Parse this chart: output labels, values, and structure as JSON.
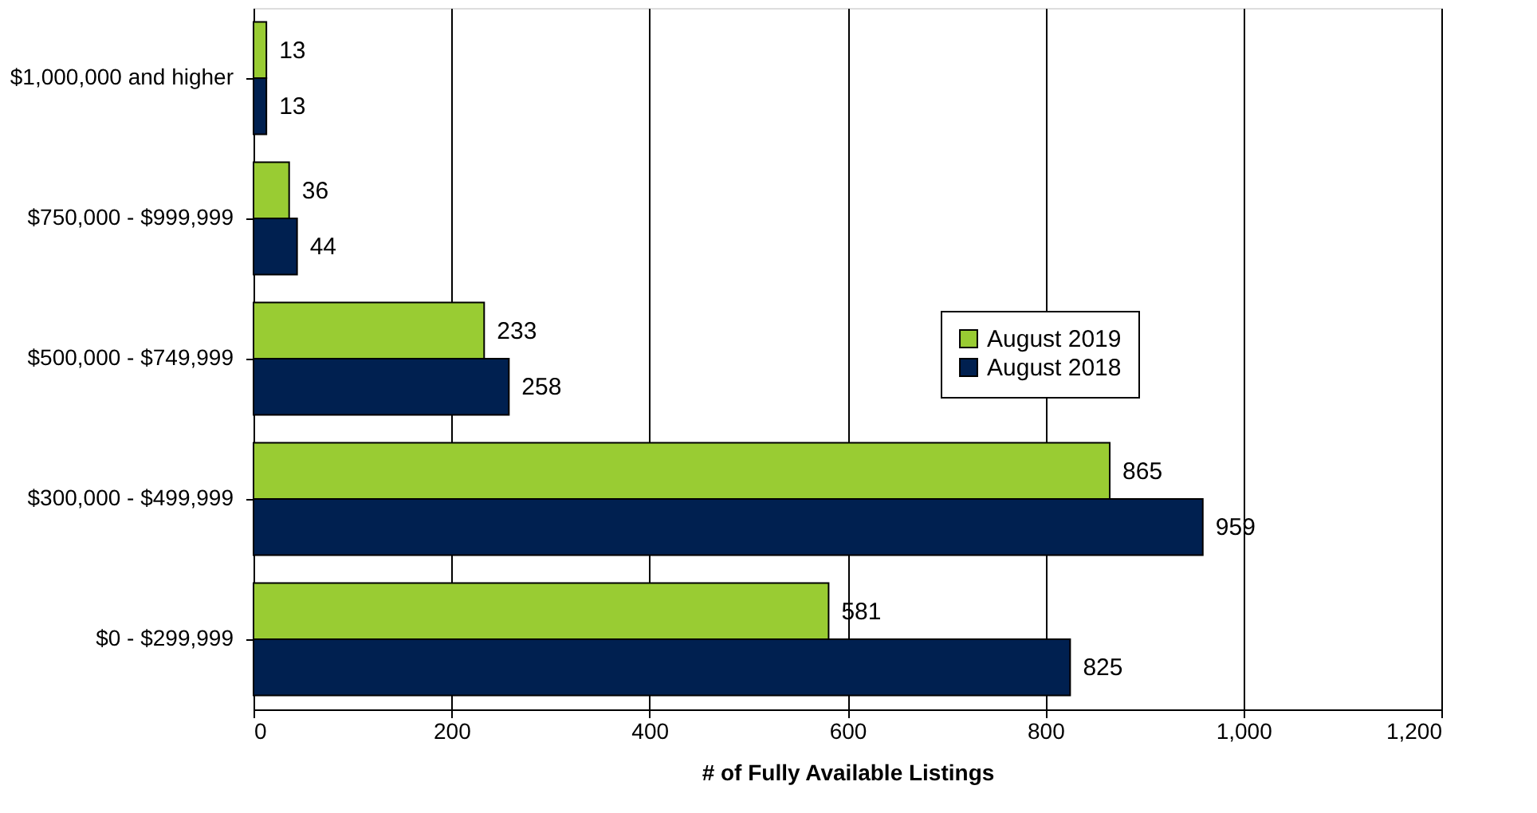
{
  "chart_data": {
    "type": "bar",
    "orientation": "horizontal",
    "xlabel": "# of Fully Available Listings",
    "categories": [
      "$1,000,000 and higher",
      "$750,000 - $999,999",
      "$500,000 - $749,999",
      "$300,000 - $499,999",
      "$0 - $299,999"
    ],
    "series": [
      {
        "name": "August 2019",
        "color": "#99cc33",
        "values": [
          13,
          36,
          233,
          865,
          581
        ]
      },
      {
        "name": "August 2018",
        "color": "#002050",
        "values": [
          13,
          44,
          258,
          959,
          825
        ]
      }
    ],
    "xlim": [
      0,
      1200
    ],
    "xticks": [
      0,
      200,
      400,
      600,
      800,
      {
        "value": 1000,
        "label": "1,000"
      },
      {
        "value": 1200,
        "label": "1,200"
      }
    ],
    "grid": "x",
    "legend": "top right",
    "data_labels": true
  }
}
